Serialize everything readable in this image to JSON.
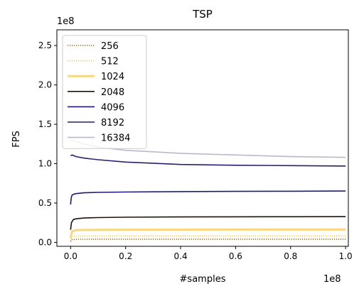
{
  "chart_data": {
    "type": "line",
    "title": "TSP",
    "xlabel": "#samples",
    "ylabel": "FPS",
    "x_multiplier": "1e8",
    "y_multiplier": "1e8",
    "xlim": [
      -0.05,
      1.01
    ],
    "ylim": [
      -0.05,
      2.7
    ],
    "xticks": [
      0.0,
      0.2,
      0.4,
      0.6,
      0.8,
      1.0
    ],
    "xtick_labels": [
      "0.0",
      "0.2",
      "0.4",
      "0.6",
      "0.8",
      "1.0"
    ],
    "yticks": [
      0.0,
      0.5,
      1.0,
      1.5,
      2.0,
      2.5
    ],
    "ytick_labels": [
      "0.0",
      "0.5",
      "1.0",
      "1.5",
      "2.0",
      "2.5"
    ],
    "legend_position": "top-left",
    "grid": false,
    "series": [
      {
        "name": "256",
        "color": "#8b6914",
        "linestyle": "dotted",
        "x": [
          0.0,
          0.005,
          0.02,
          0.05,
          0.1,
          0.3,
          0.6,
          1.0
        ],
        "y": [
          0.01,
          0.035,
          0.04,
          0.04,
          0.041,
          0.041,
          0.041,
          0.041
        ]
      },
      {
        "name": "512",
        "color": "#f2c94c",
        "linestyle": "dotted",
        "x": [
          0.0,
          0.005,
          0.02,
          0.05,
          0.1,
          0.3,
          0.6,
          1.0
        ],
        "y": [
          0.02,
          0.075,
          0.08,
          0.081,
          0.082,
          0.082,
          0.082,
          0.082
        ]
      },
      {
        "name": "1024",
        "color": "#f9d77e",
        "linestyle": "solid",
        "x": [
          0.0,
          0.005,
          0.02,
          0.05,
          0.1,
          0.3,
          0.6,
          1.0
        ],
        "y": [
          0.05,
          0.14,
          0.155,
          0.158,
          0.16,
          0.162,
          0.163,
          0.163
        ]
      },
      {
        "name": "2048",
        "color": "#1c1408",
        "linestyle": "solid",
        "x": [
          0.0,
          0.003,
          0.01,
          0.02,
          0.05,
          0.1,
          0.2,
          0.4,
          0.6,
          0.8,
          1.0
        ],
        "y": [
          0.16,
          0.25,
          0.29,
          0.3,
          0.31,
          0.315,
          0.32,
          0.323,
          0.325,
          0.326,
          0.327
        ]
      },
      {
        "name": "4096",
        "color": "#1f1a7a",
        "linestyle": "solid",
        "x": [
          0.0,
          0.002,
          0.005,
          0.01,
          0.02,
          0.05,
          0.1,
          0.2,
          0.4,
          0.6,
          0.8,
          1.0
        ],
        "y": [
          0.48,
          0.56,
          0.6,
          0.61,
          0.62,
          0.63,
          0.635,
          0.64,
          0.645,
          0.648,
          0.65,
          0.652
        ]
      },
      {
        "name": "8192",
        "color": "#272070",
        "linestyle": "solid",
        "x": [
          0.0,
          0.005,
          0.02,
          0.05,
          0.1,
          0.2,
          0.4,
          0.6,
          0.8,
          1.0
        ],
        "y": [
          1.1,
          1.11,
          1.09,
          1.07,
          1.05,
          1.02,
          0.99,
          0.98,
          0.975,
          0.97
        ]
      },
      {
        "name": "16384",
        "color": "#b8b8cf",
        "linestyle": "solid",
        "x": [
          0.0,
          0.005,
          0.02,
          0.05,
          0.1,
          0.2,
          0.4,
          0.6,
          0.8,
          1.0
        ],
        "y": [
          1.28,
          1.3,
          1.28,
          1.25,
          1.21,
          1.17,
          1.13,
          1.11,
          1.09,
          1.08
        ]
      }
    ]
  }
}
